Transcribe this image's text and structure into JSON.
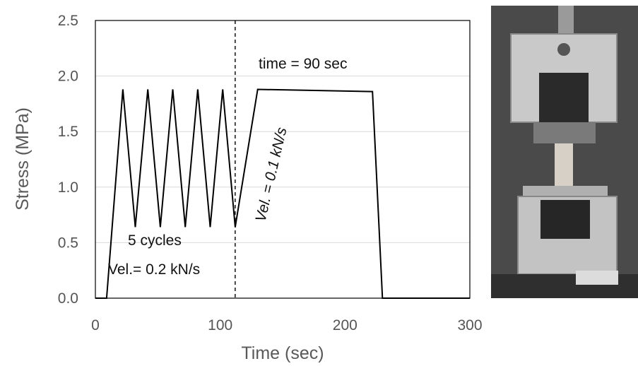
{
  "chart_data": {
    "type": "line",
    "xlabel": "Time (sec)",
    "ylabel": "Stress (MPa)",
    "xlim": [
      0,
      300
    ],
    "ylim": [
      0,
      2.5
    ],
    "x_ticks": [
      "0",
      "100",
      "200",
      "300"
    ],
    "y_ticks": [
      "0.0",
      "0.5",
      "1.0",
      "1.5",
      "2.0",
      "2.5"
    ],
    "grid": "horizontal",
    "series": [
      {
        "color": "#000000",
        "x": [
          0,
          9,
          22,
          32,
          42,
          52,
          62,
          72,
          82,
          92,
          102,
          112,
          130,
          222,
          230,
          234,
          300
        ],
        "y": [
          0,
          0,
          1.88,
          0.64,
          1.88,
          0.64,
          1.88,
          0.64,
          1.88,
          0.64,
          1.88,
          0.64,
          1.88,
          1.86,
          0,
          0,
          0
        ]
      }
    ],
    "vline_x": 112,
    "annotations": {
      "time": "time = 90 sec",
      "vel_fast": "Vel. = 0.1 kN/s",
      "cycles": "5 cycles",
      "vel_slow": "Vel.= 0.2 kN/s"
    }
  },
  "photo": {
    "description_icon": "testing-machine-photo-icon"
  }
}
